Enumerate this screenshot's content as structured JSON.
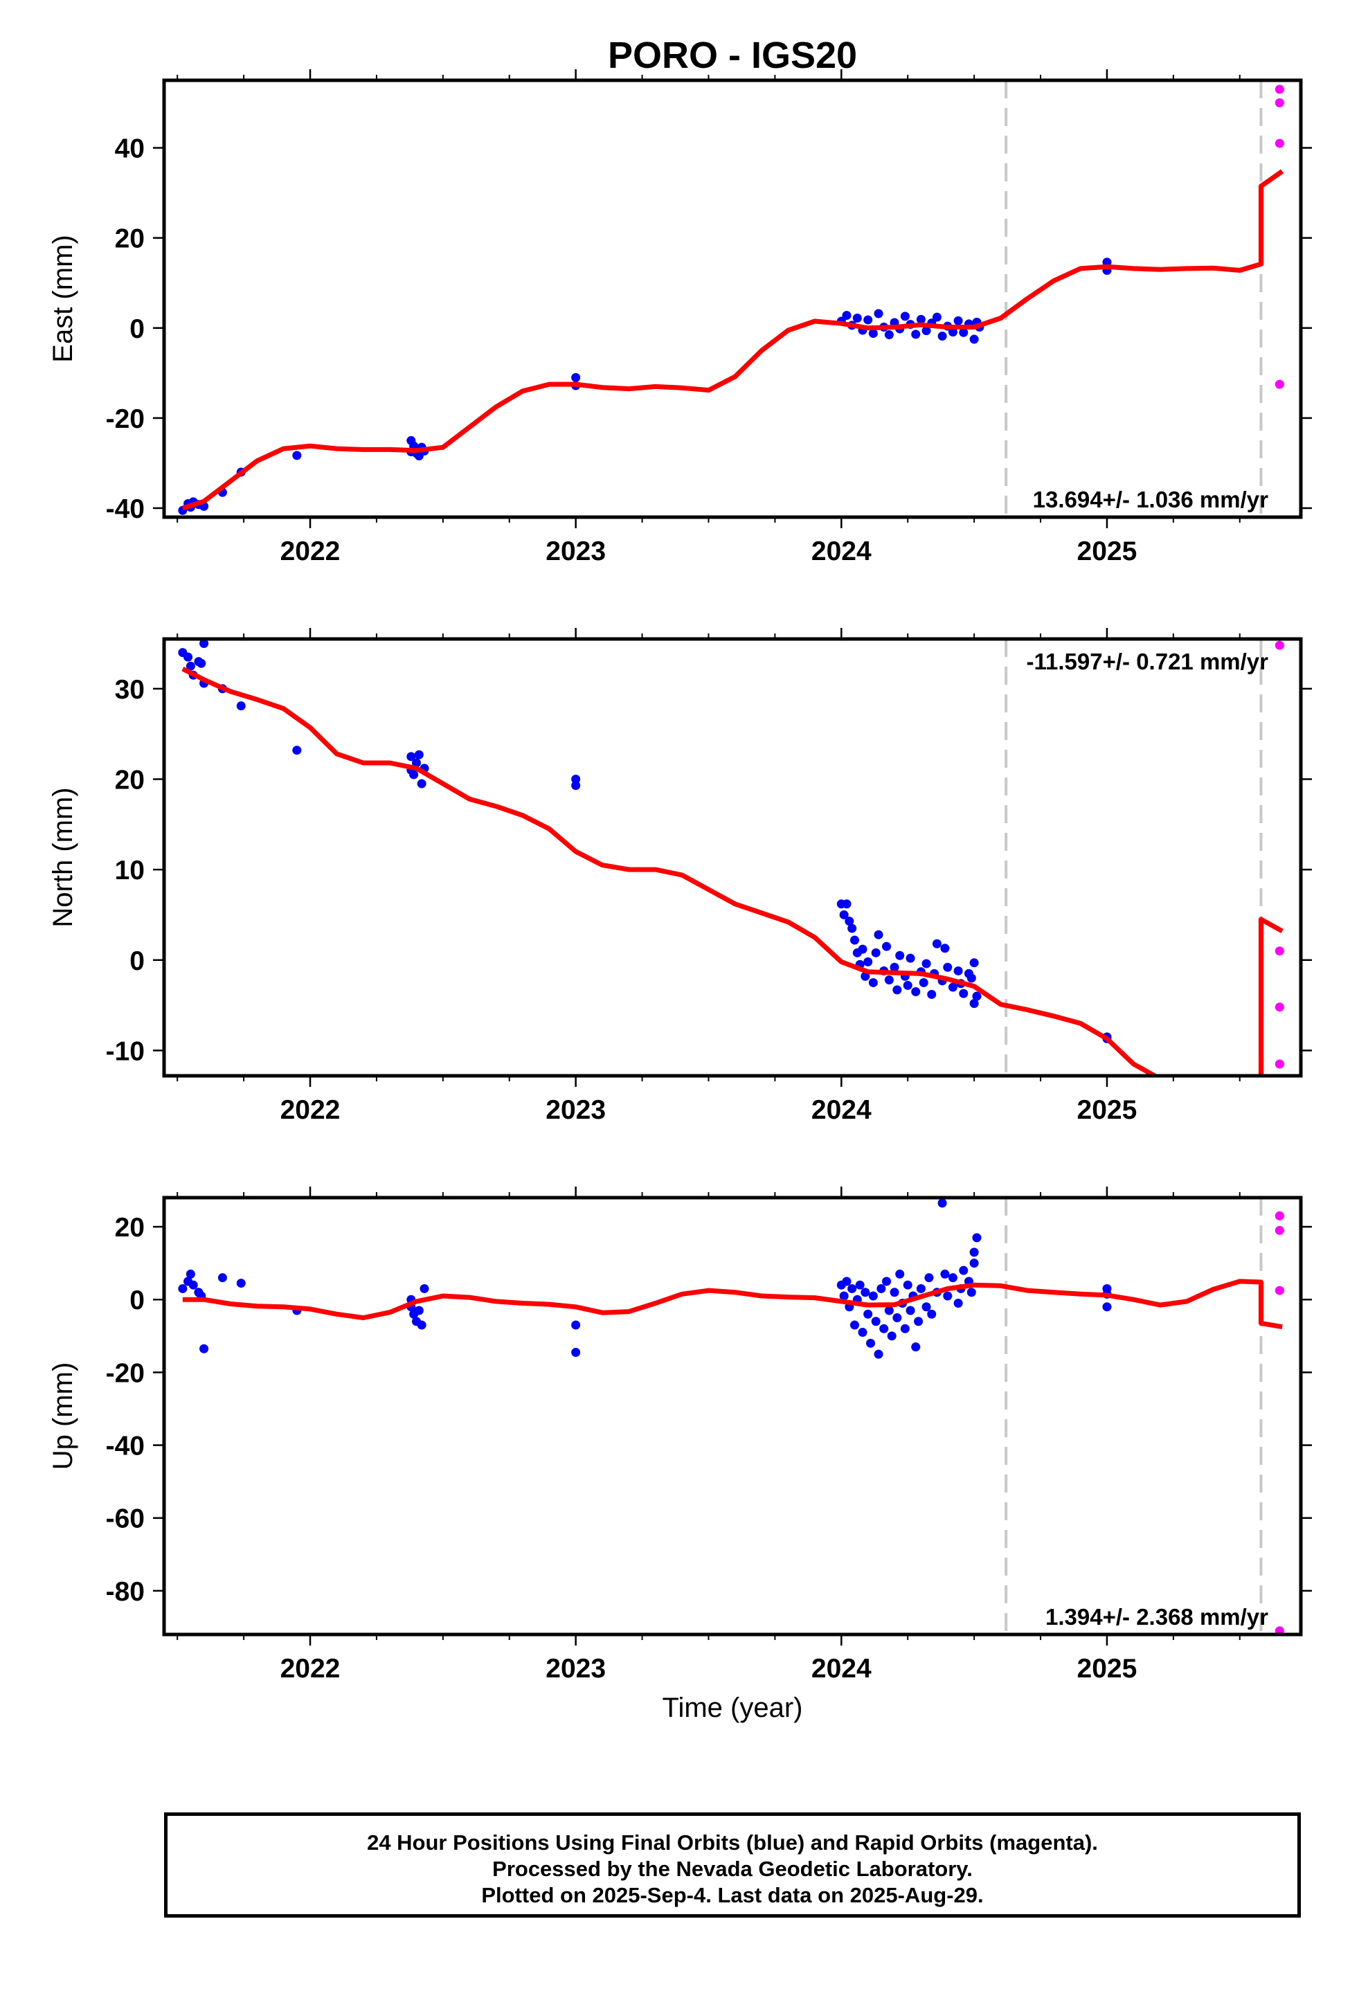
{
  "title": "PORO - IGS20",
  "xlabel": "Time (year)",
  "footer": {
    "line1": "24 Hour Positions Using Final Orbits (blue) and Rapid Orbits (magenta).",
    "line2": "Processed by the Nevada Geodetic Laboratory.",
    "line3": "Plotted on 2025-Sep-4. Last data on 2025-Aug-29."
  },
  "colors": {
    "final": "#0000ff",
    "rapid": "#ff00ff",
    "model": "#ff0000",
    "steps": "#c8c8c8"
  },
  "chart_data": [
    {
      "type": "scatter",
      "ylabel": "East (mm)",
      "rate": "13.694+/- 1.036 mm/yr",
      "xlim": [
        2021.45,
        2025.73
      ],
      "ylim": [
        -42,
        55
      ],
      "xticks": [
        2022,
        2023,
        2024,
        2025
      ],
      "yticks": [
        -40,
        -20,
        0,
        20,
        40
      ],
      "steps": [
        2024.62,
        2025.58
      ],
      "final": [
        [
          2021.52,
          -40.5
        ],
        [
          2021.54,
          -39
        ],
        [
          2021.55,
          -39.8
        ],
        [
          2021.56,
          -38.6
        ],
        [
          2021.58,
          -39.2
        ],
        [
          2021.6,
          -39.6
        ],
        [
          2021.67,
          -36.5
        ],
        [
          2021.74,
          -32
        ],
        [
          2021.95,
          -28.3
        ],
        [
          2022.38,
          -25
        ],
        [
          2022.38,
          -27.5
        ],
        [
          2022.39,
          -26.2
        ],
        [
          2022.4,
          -27.8
        ],
        [
          2022.41,
          -28.4
        ],
        [
          2022.42,
          -26.5
        ],
        [
          2022.43,
          -27.3
        ],
        [
          2023.0,
          -11
        ],
        [
          2023.0,
          -12.8
        ],
        [
          2024.0,
          1.5
        ],
        [
          2024.02,
          2.8
        ],
        [
          2024.04,
          0.6
        ],
        [
          2024.06,
          2.2
        ],
        [
          2024.08,
          -0.5
        ],
        [
          2024.1,
          1.8
        ],
        [
          2024.12,
          -1.2
        ],
        [
          2024.14,
          3.2
        ],
        [
          2024.16,
          0.2
        ],
        [
          2024.18,
          -1.5
        ],
        [
          2024.2,
          1.2
        ],
        [
          2024.22,
          -0.2
        ],
        [
          2024.24,
          2.6
        ],
        [
          2024.26,
          0.8
        ],
        [
          2024.28,
          -1.4
        ],
        [
          2024.3,
          1.9
        ],
        [
          2024.32,
          -0.6
        ],
        [
          2024.34,
          1.1
        ],
        [
          2024.36,
          2.4
        ],
        [
          2024.38,
          -1.8
        ],
        [
          2024.4,
          0.4
        ],
        [
          2024.42,
          -0.9
        ],
        [
          2024.44,
          1.6
        ],
        [
          2024.46,
          -1
        ],
        [
          2024.48,
          0.9
        ],
        [
          2024.5,
          -2.5
        ],
        [
          2024.51,
          1.3
        ],
        [
          2024.52,
          0.2
        ],
        [
          2025.0,
          14.6
        ],
        [
          2025.0,
          12.8
        ]
      ],
      "rapid": [
        [
          2025.65,
          53
        ],
        [
          2025.65,
          50
        ],
        [
          2025.65,
          41
        ],
        [
          2025.65,
          -12.5
        ]
      ],
      "model": [
        [
          2021.52,
          -40
        ],
        [
          2021.6,
          -38.5
        ],
        [
          2021.7,
          -34
        ],
        [
          2021.8,
          -29.5
        ],
        [
          2021.9,
          -26.8
        ],
        [
          2022.0,
          -26.2
        ],
        [
          2022.1,
          -26.8
        ],
        [
          2022.2,
          -27
        ],
        [
          2022.3,
          -27
        ],
        [
          2022.4,
          -27.2
        ],
        [
          2022.5,
          -26.5
        ],
        [
          2022.6,
          -22
        ],
        [
          2022.7,
          -17.5
        ],
        [
          2022.8,
          -14
        ],
        [
          2022.9,
          -12.5
        ],
        [
          2023.0,
          -12.5
        ],
        [
          2023.1,
          -13.2
        ],
        [
          2023.2,
          -13.5
        ],
        [
          2023.3,
          -13
        ],
        [
          2023.4,
          -13.3
        ],
        [
          2023.5,
          -13.8
        ],
        [
          2023.6,
          -10.8
        ],
        [
          2023.7,
          -5
        ],
        [
          2023.8,
          -0.5
        ],
        [
          2023.9,
          1.5
        ],
        [
          2024.0,
          1
        ],
        [
          2024.1,
          0
        ],
        [
          2024.2,
          0.2
        ],
        [
          2024.3,
          0.7
        ],
        [
          2024.4,
          0.2
        ],
        [
          2024.5,
          0.2
        ],
        [
          2024.6,
          2.2
        ],
        [
          2024.7,
          6.5
        ],
        [
          2024.8,
          10.5
        ],
        [
          2024.9,
          13.2
        ],
        [
          2025.0,
          13.6
        ],
        [
          2025.1,
          13.2
        ],
        [
          2025.2,
          13
        ],
        [
          2025.3,
          13.2
        ],
        [
          2025.4,
          13.3
        ],
        [
          2025.5,
          12.8
        ],
        [
          2025.58,
          14.2
        ],
        [
          2025.58,
          31.5
        ],
        [
          2025.66,
          34.8
        ]
      ]
    },
    {
      "type": "scatter",
      "ylabel": "North (mm)",
      "rate": "-11.597+/- 0.721 mm/yr",
      "xlim": [
        2021.45,
        2025.73
      ],
      "ylim": [
        -12.8,
        35.5
      ],
      "xticks": [
        2022,
        2023,
        2024,
        2025
      ],
      "yticks": [
        -10,
        0,
        10,
        20,
        30
      ],
      "steps": [
        2024.62,
        2025.58
      ],
      "final": [
        [
          2021.52,
          34
        ],
        [
          2021.54,
          33.5
        ],
        [
          2021.55,
          32.5
        ],
        [
          2021.56,
          31.5
        ],
        [
          2021.58,
          33
        ],
        [
          2021.59,
          32.8
        ],
        [
          2021.6,
          30.6
        ],
        [
          2021.6,
          35
        ],
        [
          2021.67,
          30
        ],
        [
          2021.74,
          28.1
        ],
        [
          2021.95,
          23.2
        ],
        [
          2022.38,
          21
        ],
        [
          2022.38,
          22.5
        ],
        [
          2022.39,
          20.5
        ],
        [
          2022.4,
          21.8
        ],
        [
          2022.41,
          22.7
        ],
        [
          2022.42,
          19.5
        ],
        [
          2022.43,
          21.2
        ],
        [
          2023.0,
          20
        ],
        [
          2023.0,
          19.3
        ],
        [
          2024.0,
          6.2
        ],
        [
          2024.01,
          5
        ],
        [
          2024.02,
          6.2
        ],
        [
          2024.03,
          4.3
        ],
        [
          2024.04,
          3.5
        ],
        [
          2024.05,
          2.2
        ],
        [
          2024.06,
          0.8
        ],
        [
          2024.07,
          -0.5
        ],
        [
          2024.08,
          1.2
        ],
        [
          2024.09,
          -1.8
        ],
        [
          2024.1,
          -0.2
        ],
        [
          2024.12,
          -2.5
        ],
        [
          2024.13,
          0.8
        ],
        [
          2024.14,
          2.8
        ],
        [
          2024.16,
          -1.2
        ],
        [
          2024.17,
          1.5
        ],
        [
          2024.18,
          -2.2
        ],
        [
          2024.2,
          -0.8
        ],
        [
          2024.21,
          -3.3
        ],
        [
          2024.22,
          0.5
        ],
        [
          2024.24,
          -1.8
        ],
        [
          2024.25,
          -2.8
        ],
        [
          2024.26,
          0.2
        ],
        [
          2024.28,
          -3.5
        ],
        [
          2024.3,
          -1.3
        ],
        [
          2024.31,
          -2.5
        ],
        [
          2024.32,
          -0.4
        ],
        [
          2024.34,
          -3.8
        ],
        [
          2024.35,
          -1.5
        ],
        [
          2024.36,
          1.8
        ],
        [
          2024.38,
          -2.3
        ],
        [
          2024.39,
          1.3
        ],
        [
          2024.4,
          -0.8
        ],
        [
          2024.42,
          -3
        ],
        [
          2024.44,
          -1.2
        ],
        [
          2024.45,
          -2.6
        ],
        [
          2024.46,
          -3.7
        ],
        [
          2024.48,
          -1.5
        ],
        [
          2024.49,
          -2
        ],
        [
          2024.5,
          -4.8
        ],
        [
          2024.5,
          -0.3
        ],
        [
          2024.51,
          -4
        ],
        [
          2025.0,
          -8.7
        ],
        [
          2025.0,
          -8.5
        ]
      ],
      "rapid": [
        [
          2025.65,
          34.8
        ],
        [
          2025.65,
          1
        ],
        [
          2025.65,
          -5.2
        ],
        [
          2025.65,
          -11.5
        ]
      ],
      "model": [
        [
          2021.52,
          32.2
        ],
        [
          2021.6,
          31
        ],
        [
          2021.7,
          29.7
        ],
        [
          2021.8,
          28.8
        ],
        [
          2021.9,
          27.8
        ],
        [
          2022.0,
          25.7
        ],
        [
          2022.1,
          22.8
        ],
        [
          2022.2,
          21.8
        ],
        [
          2022.3,
          21.8
        ],
        [
          2022.4,
          21.2
        ],
        [
          2022.5,
          19.5
        ],
        [
          2022.6,
          17.8
        ],
        [
          2022.7,
          17
        ],
        [
          2022.8,
          16
        ],
        [
          2022.9,
          14.5
        ],
        [
          2023.0,
          12
        ],
        [
          2023.1,
          10.5
        ],
        [
          2023.2,
          10
        ],
        [
          2023.3,
          10
        ],
        [
          2023.4,
          9.4
        ],
        [
          2023.5,
          7.8
        ],
        [
          2023.6,
          6.2
        ],
        [
          2023.7,
          5.2
        ],
        [
          2023.8,
          4.2
        ],
        [
          2023.9,
          2.5
        ],
        [
          2024.0,
          -0.2
        ],
        [
          2024.1,
          -1.3
        ],
        [
          2024.2,
          -1.4
        ],
        [
          2024.3,
          -1.5
        ],
        [
          2024.4,
          -2.1
        ],
        [
          2024.5,
          -2.9
        ],
        [
          2024.6,
          -4.9
        ],
        [
          2024.7,
          -5.5
        ],
        [
          2024.8,
          -6.2
        ],
        [
          2024.9,
          -7
        ],
        [
          2025.0,
          -8.7
        ],
        [
          2025.1,
          -11.5
        ],
        [
          2025.18,
          -12.8
        ]
      ],
      "model2": [
        [
          2025.58,
          -12.8
        ],
        [
          2025.58,
          4.5
        ],
        [
          2025.66,
          3.2
        ]
      ]
    },
    {
      "type": "scatter",
      "ylabel": "Up (mm)",
      "rate": "1.394+/- 2.368 mm/yr",
      "xlim": [
        2021.45,
        2025.73
      ],
      "ylim": [
        -92,
        28
      ],
      "xticks": [
        2022,
        2023,
        2024,
        2025
      ],
      "yticks": [
        -80,
        -60,
        -40,
        -20,
        0,
        20
      ],
      "steps": [
        2024.62,
        2025.58
      ],
      "final": [
        [
          2021.52,
          3
        ],
        [
          2021.54,
          5
        ],
        [
          2021.55,
          7
        ],
        [
          2021.56,
          4
        ],
        [
          2021.58,
          2
        ],
        [
          2021.59,
          1
        ],
        [
          2021.6,
          -13.5
        ],
        [
          2021.67,
          6
        ],
        [
          2021.74,
          4.5
        ],
        [
          2021.95,
          -3
        ],
        [
          2022.38,
          -2
        ],
        [
          2022.38,
          0
        ],
        [
          2022.39,
          -4
        ],
        [
          2022.4,
          -6
        ],
        [
          2022.41,
          -3
        ],
        [
          2022.42,
          -7
        ],
        [
          2022.43,
          3
        ],
        [
          2023.0,
          -7
        ],
        [
          2023.0,
          -14.5
        ],
        [
          2024.0,
          4
        ],
        [
          2024.01,
          1
        ],
        [
          2024.02,
          5
        ],
        [
          2024.03,
          -2
        ],
        [
          2024.04,
          3
        ],
        [
          2024.05,
          -7
        ],
        [
          2024.06,
          0
        ],
        [
          2024.07,
          4
        ],
        [
          2024.08,
          -9
        ],
        [
          2024.09,
          2
        ],
        [
          2024.1,
          -4
        ],
        [
          2024.11,
          -12
        ],
        [
          2024.12,
          1
        ],
        [
          2024.13,
          -6
        ],
        [
          2024.14,
          -15
        ],
        [
          2024.15,
          3
        ],
        [
          2024.16,
          -8
        ],
        [
          2024.17,
          5
        ],
        [
          2024.18,
          -3
        ],
        [
          2024.19,
          -10
        ],
        [
          2024.2,
          2
        ],
        [
          2024.21,
          -5
        ],
        [
          2024.22,
          7
        ],
        [
          2024.23,
          -1
        ],
        [
          2024.24,
          -8
        ],
        [
          2024.25,
          4
        ],
        [
          2024.26,
          -3
        ],
        [
          2024.27,
          1
        ],
        [
          2024.28,
          -13
        ],
        [
          2024.29,
          -6
        ],
        [
          2024.3,
          3
        ],
        [
          2024.32,
          -2
        ],
        [
          2024.33,
          6
        ],
        [
          2024.34,
          -4
        ],
        [
          2024.36,
          2
        ],
        [
          2024.38,
          26.5
        ],
        [
          2024.39,
          7
        ],
        [
          2024.4,
          1
        ],
        [
          2024.42,
          6
        ],
        [
          2024.44,
          -1
        ],
        [
          2024.45,
          3
        ],
        [
          2024.46,
          8
        ],
        [
          2024.48,
          5
        ],
        [
          2024.49,
          2
        ],
        [
          2024.5,
          10
        ],
        [
          2024.5,
          13
        ],
        [
          2024.51,
          17
        ],
        [
          2025.0,
          3
        ],
        [
          2025.0,
          -2
        ],
        [
          2025.0,
          1.5
        ]
      ],
      "rapid": [
        [
          2025.65,
          23
        ],
        [
          2025.65,
          19
        ],
        [
          2025.65,
          2.5
        ],
        [
          2025.65,
          -91
        ]
      ],
      "model": [
        [
          2021.52,
          0
        ],
        [
          2021.6,
          0
        ],
        [
          2021.7,
          -1.2
        ],
        [
          2021.8,
          -1.8
        ],
        [
          2021.9,
          -2
        ],
        [
          2022.0,
          -2.6
        ],
        [
          2022.1,
          -4
        ],
        [
          2022.2,
          -5
        ],
        [
          2022.3,
          -3.5
        ],
        [
          2022.4,
          -0.5
        ],
        [
          2022.5,
          1
        ],
        [
          2022.6,
          0.6
        ],
        [
          2022.7,
          -0.5
        ],
        [
          2022.8,
          -1
        ],
        [
          2022.9,
          -1.3
        ],
        [
          2023.0,
          -2
        ],
        [
          2023.1,
          -3.6
        ],
        [
          2023.2,
          -3.3
        ],
        [
          2023.3,
          -1
        ],
        [
          2023.4,
          1.5
        ],
        [
          2023.5,
          2.5
        ],
        [
          2023.6,
          2
        ],
        [
          2023.7,
          1
        ],
        [
          2023.8,
          0.7
        ],
        [
          2023.9,
          0.5
        ],
        [
          2024.0,
          -0.5
        ],
        [
          2024.1,
          -1.5
        ],
        [
          2024.2,
          -1.4
        ],
        [
          2024.3,
          0.8
        ],
        [
          2024.4,
          3
        ],
        [
          2024.5,
          4
        ],
        [
          2024.6,
          3.8
        ],
        [
          2024.7,
          2.5
        ],
        [
          2024.8,
          2
        ],
        [
          2024.9,
          1.5
        ],
        [
          2025.0,
          1.2
        ],
        [
          2025.1,
          0
        ],
        [
          2025.2,
          -1.5
        ],
        [
          2025.3,
          -0.5
        ],
        [
          2025.4,
          2.8
        ],
        [
          2025.5,
          5
        ],
        [
          2025.58,
          4.8
        ],
        [
          2025.58,
          -6.5
        ],
        [
          2025.66,
          -7.5
        ]
      ]
    }
  ]
}
